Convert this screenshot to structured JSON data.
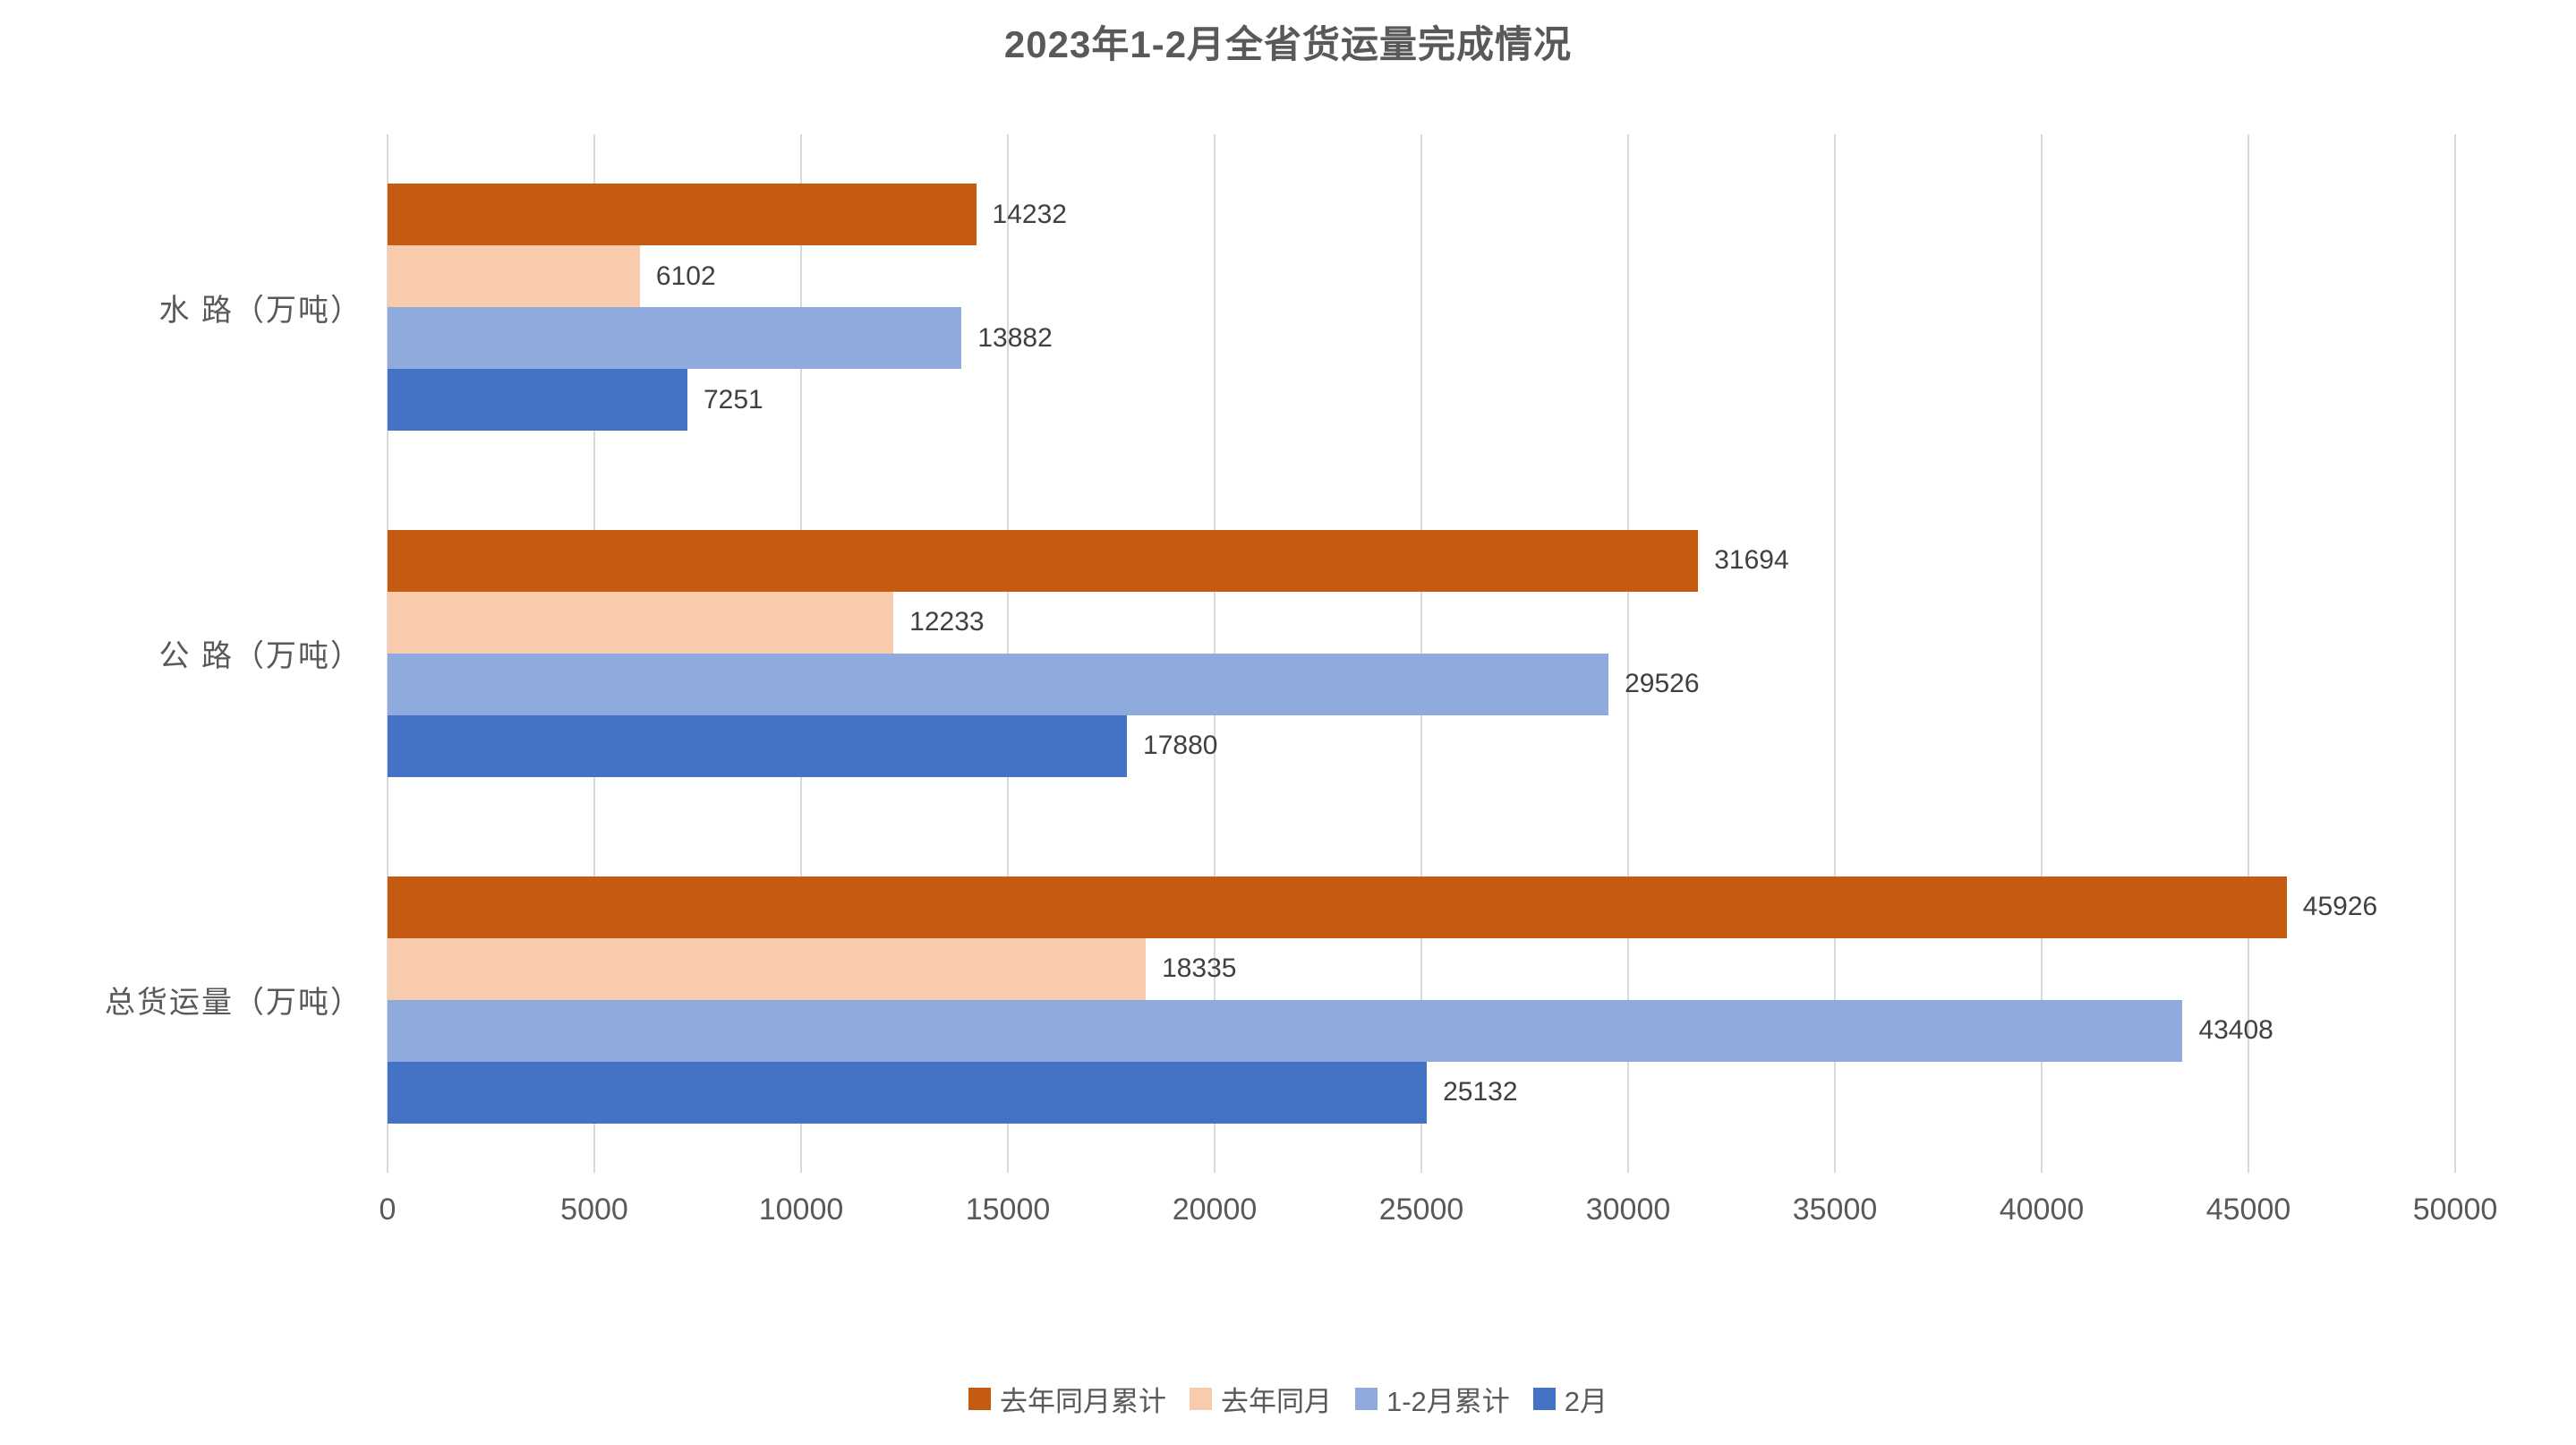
{
  "title": "2023年1-2月全省货运量完成情况",
  "colors": {
    "grid": "#d9d9d9",
    "title_text": "#595959",
    "axis_text": "#595959",
    "value_text": "#404040",
    "series_last_year_cum": "#c55a11",
    "series_last_year_month": "#f8cbad",
    "series_jan_feb_cum": "#8faadc",
    "series_feb": "#4472c4"
  },
  "chart_data": {
    "type": "bar",
    "orientation": "horizontal",
    "title": "2023年1-2月全省货运量完成情况",
    "xlabel": "",
    "ylabel": "",
    "categories": [
      "水 路（万吨）",
      "公 路（万吨）",
      "总货运量（万吨）"
    ],
    "series": [
      {
        "name": "去年同月累计",
        "color": "#c55a11",
        "values": [
          14232,
          31694,
          45926
        ]
      },
      {
        "name": "去年同月",
        "color": "#f8cbad",
        "values": [
          6102,
          12233,
          18335
        ]
      },
      {
        "name": "1-2月累计",
        "color": "#8faadc",
        "values": [
          13882,
          29526,
          43408
        ]
      },
      {
        "name": "2月",
        "color": "#4472c4",
        "values": [
          7251,
          17880,
          25132
        ]
      }
    ],
    "xlim": [
      0,
      50000
    ],
    "xticks": [
      0,
      5000,
      10000,
      15000,
      20000,
      25000,
      30000,
      35000,
      40000,
      45000,
      50000
    ],
    "grid": true,
    "legend_position": "bottom"
  }
}
